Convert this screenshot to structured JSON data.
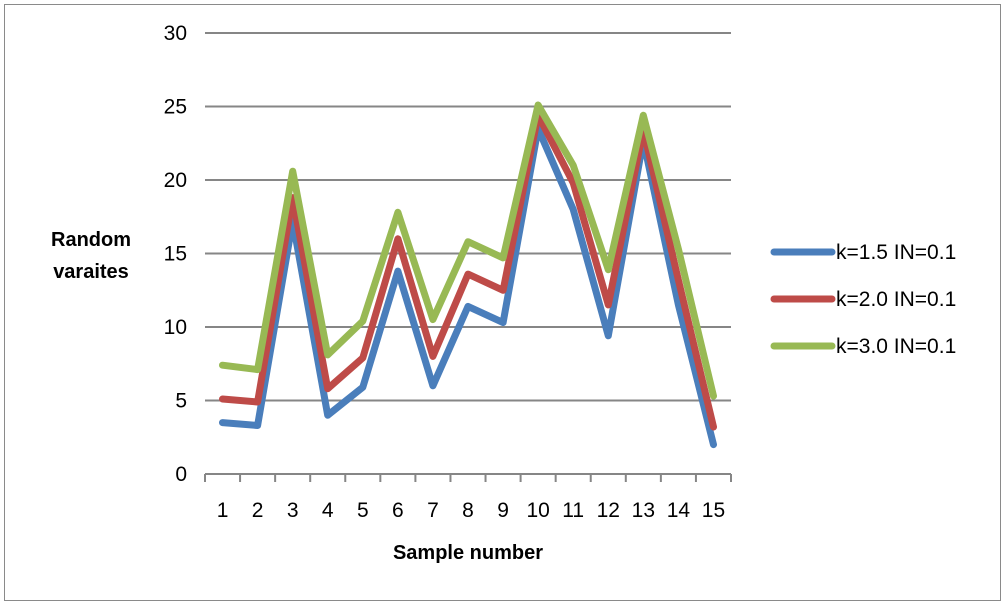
{
  "chart_data": {
    "type": "line",
    "title": "",
    "xlabel": "Sample number",
    "ylabel_lines": [
      "Random",
      "varaites"
    ],
    "categories": [
      "1",
      "2",
      "3",
      "4",
      "5",
      "6",
      "7",
      "8",
      "9",
      "10",
      "11",
      "12",
      "13",
      "14",
      "15"
    ],
    "ylim": [
      0,
      30
    ],
    "yticks": [
      "0",
      "5",
      "10",
      "15",
      "20",
      "25",
      "30"
    ],
    "grid": "horizontal",
    "legend_placement": "right",
    "series": [
      {
        "name": "k=1.5 IN=0.1",
        "color": "#4a7ebb",
        "values": [
          3.5,
          3.3,
          17.2,
          4.0,
          5.9,
          13.8,
          6.0,
          11.4,
          10.3,
          23.5,
          18.0,
          9.4,
          22.7,
          11.5,
          2.0
        ]
      },
      {
        "name": "k=2.0 IN=0.1",
        "color": "#be4b48",
        "values": [
          5.1,
          4.9,
          18.8,
          5.8,
          7.9,
          16.0,
          8.0,
          13.6,
          12.5,
          24.4,
          19.8,
          11.5,
          23.4,
          13.2,
          3.2
        ]
      },
      {
        "name": "k=3.0 IN=0.1",
        "color": "#98b954",
        "values": [
          7.4,
          7.1,
          20.6,
          8.1,
          10.4,
          17.8,
          10.5,
          15.8,
          14.7,
          25.1,
          21.0,
          13.9,
          24.4,
          15.3,
          5.3
        ]
      }
    ]
  }
}
